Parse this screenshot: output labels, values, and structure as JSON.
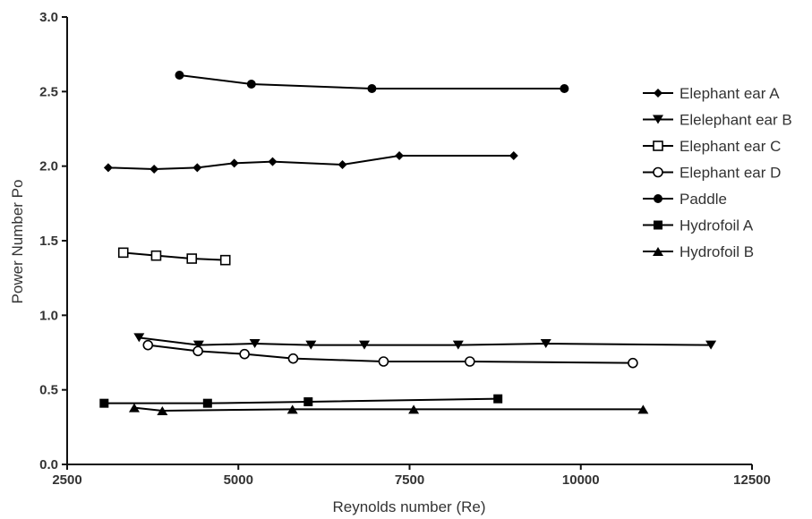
{
  "chart_data": {
    "type": "line",
    "title": "",
    "xlabel": "Reynolds number (Re)",
    "ylabel": "Power Number Po",
    "xlim": [
      2500,
      12500
    ],
    "ylim": [
      0.0,
      3.0
    ],
    "xticks": [
      2500,
      5000,
      7500,
      10000,
      12500
    ],
    "xtick_labels": [
      "2500",
      "5000",
      "7500",
      "10000",
      "12500"
    ],
    "yticks": [
      0.0,
      0.5,
      1.0,
      1.5,
      2.0,
      2.5,
      3.0
    ],
    "ytick_labels": [
      "0.0",
      "0.5",
      "1.0",
      "1.5",
      "2.0",
      "2.5",
      "3.0"
    ],
    "grid": false,
    "legend_position": "right",
    "series": [
      {
        "name": "Elephant ear A",
        "marker": "diamond",
        "x": [
          3100,
          3770,
          4400,
          4940,
          5500,
          6520,
          7350,
          9020
        ],
        "y": [
          1.99,
          1.98,
          1.99,
          2.02,
          2.03,
          2.01,
          2.07,
          2.07
        ]
      },
      {
        "name": "Elelephant ear B",
        "marker": "triangle-down",
        "x": [
          3550,
          4420,
          5240,
          6060,
          6840,
          8210,
          9490,
          11900
        ],
        "y": [
          0.85,
          0.8,
          0.81,
          0.8,
          0.8,
          0.8,
          0.81,
          0.8
        ]
      },
      {
        "name": "Elephant ear C",
        "marker": "square-open",
        "x": [
          3320,
          3800,
          4320,
          4810
        ],
        "y": [
          1.42,
          1.4,
          1.38,
          1.37
        ]
      },
      {
        "name": "Elephant ear D",
        "marker": "circle-open",
        "x": [
          3680,
          4410,
          5090,
          5800,
          7120,
          8380,
          10760
        ],
        "y": [
          0.8,
          0.76,
          0.74,
          0.71,
          0.69,
          0.69,
          0.68
        ]
      },
      {
        "name": "Paddle",
        "marker": "circle",
        "x": [
          4140,
          5190,
          6950,
          9760
        ],
        "y": [
          2.61,
          2.55,
          2.52,
          2.52
        ]
      },
      {
        "name": "Hydrofoil A",
        "marker": "square",
        "x": [
          3040,
          4550,
          6020,
          8790
        ],
        "y": [
          0.41,
          0.41,
          0.42,
          0.44
        ]
      },
      {
        "name": "Hydrofoil B",
        "marker": "triangle-up",
        "x": [
          3480,
          3890,
          5790,
          7560,
          10910
        ],
        "y": [
          0.38,
          0.36,
          0.37,
          0.37,
          0.37
        ]
      }
    ]
  }
}
